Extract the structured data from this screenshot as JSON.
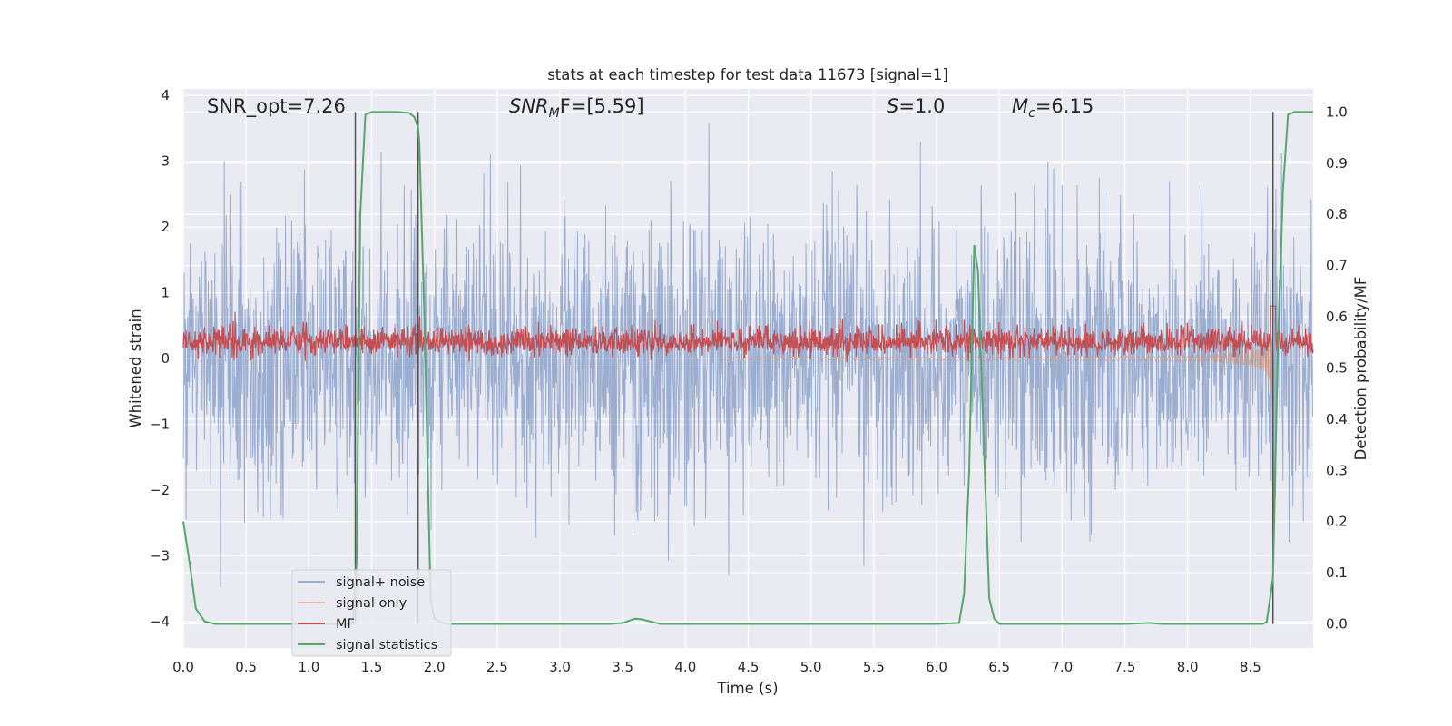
{
  "chart_data": {
    "type": "line",
    "title": "stats at each timestep for test data 11673 [signal=1]",
    "xlabel": "Time (s)",
    "ylabel": "Whitened strain",
    "y2label": "Detection probability/MF",
    "xlim": [
      0.0,
      9.0
    ],
    "ylim": [
      -4.4,
      4.1
    ],
    "y2lim": [
      -0.047,
      1.045
    ],
    "xticks": [
      "0.0",
      "0.5",
      "1.0",
      "1.5",
      "2.0",
      "2.5",
      "3.0",
      "3.5",
      "4.0",
      "4.5",
      "5.0",
      "5.5",
      "6.0",
      "6.5",
      "7.0",
      "7.5",
      "8.0",
      "8.5"
    ],
    "yticks": [
      "4",
      "3",
      "2",
      "1",
      "0",
      "−1",
      "−2",
      "−3",
      "−4"
    ],
    "y2ticks": [
      "1.0",
      "0.9",
      "0.8",
      "0.7",
      "0.6",
      "0.5",
      "0.4",
      "0.3",
      "0.2",
      "0.1",
      "0.0"
    ],
    "grid": true,
    "legend_position": "lower-left",
    "annotations": {
      "snr_opt": "SNR_opt=7.26",
      "snr_mf_pre": "SNR",
      "snr_mf_sub": "M",
      "snr_mf_post": "F=[5.59]",
      "s_italic": "S",
      "s_value": "=1.0",
      "mc_italic": "M",
      "mc_sub": "c",
      "mc_value": "=6.15"
    },
    "series": [
      {
        "name": "signal+ noise",
        "color": "#4c72b0",
        "kind": "noise",
        "amplitude_range": [
          -4.0,
          4.0
        ]
      },
      {
        "name": "signal only",
        "color": "#dd8452",
        "kind": "chirp",
        "merger_time": 8.68,
        "peak_amplitude": 0.9
      },
      {
        "name": "MF",
        "color": "#c44e52",
        "kind": "mf",
        "baseline": 0.25,
        "peak": 0.8
      },
      {
        "name": "signal statistics",
        "color": "#55a868",
        "kind": "stat",
        "x": [
          0.0,
          0.05,
          0.1,
          0.17,
          0.25,
          0.35,
          0.5,
          0.8,
          1.0,
          1.2,
          1.35,
          1.38,
          1.41,
          1.45,
          1.5,
          1.6,
          1.7,
          1.75,
          1.8,
          1.84,
          1.87,
          1.88,
          1.92,
          1.97,
          2.0,
          2.05,
          2.1,
          2.2,
          2.5,
          3.0,
          3.4,
          3.5,
          3.55,
          3.6,
          3.65,
          3.7,
          3.75,
          3.8,
          4.0,
          5.0,
          6.0,
          6.18,
          6.22,
          6.26,
          6.3,
          6.33,
          6.37,
          6.42,
          6.46,
          6.5,
          6.6,
          7.0,
          7.5,
          7.7,
          7.8,
          8.0,
          8.4,
          8.6,
          8.63,
          8.68,
          8.72,
          8.76,
          8.8,
          8.85,
          9.0
        ],
        "y": [
          0.2,
          0.12,
          0.03,
          0.005,
          0.0,
          0.0,
          0.0,
          0.0,
          0.0,
          0.0,
          0.0,
          0.12,
          0.8,
          0.995,
          1.0,
          1.0,
          1.0,
          0.999,
          0.998,
          0.99,
          0.97,
          0.94,
          0.6,
          0.05,
          0.01,
          0.003,
          0.0,
          0.0,
          0.0,
          0.0,
          0.0,
          0.002,
          0.006,
          0.01,
          0.009,
          0.006,
          0.003,
          0.0,
          0.0,
          0.0,
          0.0,
          0.002,
          0.06,
          0.3,
          0.74,
          0.69,
          0.4,
          0.05,
          0.01,
          0.0,
          0.0,
          0.0,
          0.0,
          0.002,
          0.0,
          0.0,
          0.0,
          0.0,
          0.004,
          0.09,
          0.55,
          0.85,
          0.995,
          1.0,
          1.0
        ]
      }
    ],
    "vertical_lines_x": [
      1.37,
      1.87,
      8.68
    ],
    "colors": {
      "background": "#eaeaf2",
      "grid": "#ffffff",
      "vline": "#555555"
    }
  }
}
